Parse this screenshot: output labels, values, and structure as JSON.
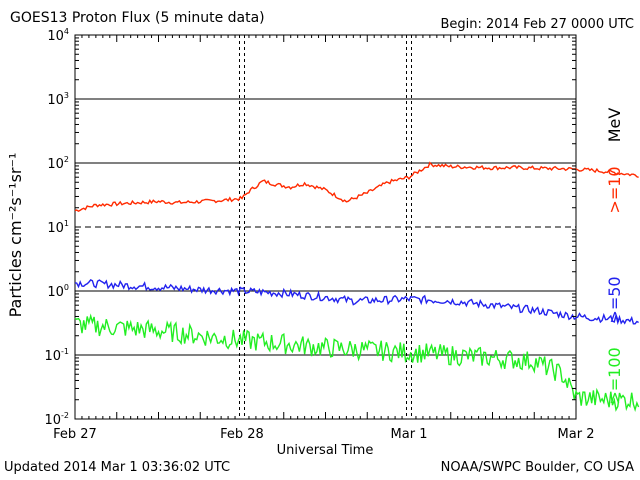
{
  "header": {
    "title": "GOES13 Proton Flux (5 minute data)",
    "begin": "Begin: 2014 Feb 27 0000 UTC"
  },
  "footer": {
    "updated": "Updated 2014 Mar  1 03:36:02 UTC",
    "credit": "NOAA/SWPC Boulder, CO USA"
  },
  "chart_data": {
    "type": "line",
    "title": "GOES13 Proton Flux (5 minute data)",
    "xlabel": "Universal Time",
    "ylabel": "Particles cm⁻²s⁻¹sr⁻¹",
    "y_scale": "log",
    "ylim": [
      0.01,
      10000
    ],
    "y_ticks": [
      {
        "value": 0.01,
        "base": "10",
        "exp": "-2"
      },
      {
        "value": 0.1,
        "base": "10",
        "exp": "-1"
      },
      {
        "value": 1,
        "base": "10",
        "exp": "0"
      },
      {
        "value": 10,
        "base": "10",
        "exp": "1"
      },
      {
        "value": 100,
        "base": "10",
        "exp": "2"
      },
      {
        "value": 1000,
        "base": "10",
        "exp": "3"
      },
      {
        "value": 10000,
        "base": "10",
        "exp": "4"
      }
    ],
    "x_ticks": [
      "Feb 27",
      "Feb 28",
      "Mar 1",
      "Mar 2"
    ],
    "xlim_days": [
      0,
      3
    ],
    "grid": "horizontal lines at decades; dashed line at 10; dashed vertical markers at day boundaries",
    "legend_unit": "MeV",
    "series": [
      {
        "name": ">=10",
        "color": "#ff2a00",
        "x_hours": [
          0,
          3,
          6,
          9,
          12,
          15,
          18,
          21,
          24,
          25,
          27,
          29,
          31,
          33,
          36,
          39,
          42,
          45,
          48,
          51,
          54,
          57,
          60,
          63,
          66,
          69,
          72,
          75,
          78,
          81
        ],
        "y": [
          18,
          22,
          23,
          24,
          25,
          24,
          25,
          26,
          28,
          36,
          52,
          46,
          42,
          48,
          38,
          25,
          34,
          50,
          60,
          95,
          88,
          86,
          84,
          85,
          83,
          82,
          80,
          76,
          70,
          64
        ]
      },
      {
        "name": ">=50",
        "color": "#2222ee",
        "x_hours": [
          0,
          6,
          12,
          18,
          24,
          30,
          36,
          40,
          44,
          48,
          54,
          60,
          66,
          72,
          78,
          81
        ],
        "y": [
          1.35,
          1.25,
          1.15,
          1.05,
          1.0,
          0.92,
          0.8,
          0.7,
          0.72,
          0.75,
          0.7,
          0.6,
          0.5,
          0.4,
          0.36,
          0.33
        ]
      },
      {
        "name": ">=100",
        "color": "#22ee22",
        "x_hours": [
          0,
          6,
          12,
          18,
          24,
          30,
          36,
          42,
          48,
          54,
          60,
          66,
          70,
          72,
          76,
          80,
          81
        ],
        "y": [
          0.3,
          0.27,
          0.24,
          0.2,
          0.17,
          0.15,
          0.13,
          0.12,
          0.11,
          0.1,
          0.09,
          0.08,
          0.05,
          0.022,
          0.02,
          0.02,
          0.02
        ]
      }
    ]
  }
}
